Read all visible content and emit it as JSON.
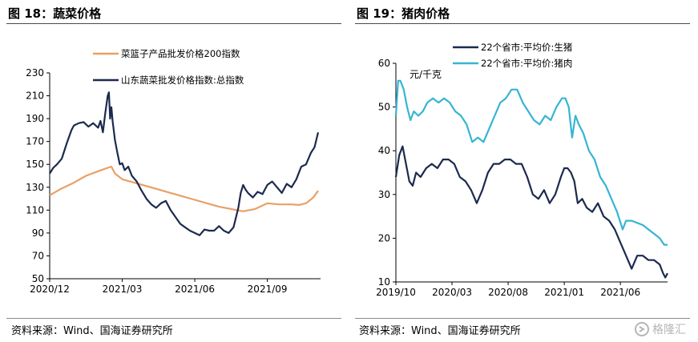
{
  "left_panel": {
    "title": "图 18：蔬菜价格",
    "source": "资料来源：Wind、国海证券研究所"
  },
  "right_panel": {
    "title": "图 19：猪肉价格",
    "source": "资料来源：Wind、国海证券研究所"
  },
  "watermark": {
    "text": "格隆汇",
    "icon": "gelonghui-logo-icon"
  },
  "colors": {
    "navy": "#1b2a4e",
    "orange": "#e8a066",
    "cyan": "#36b5d2"
  },
  "chart_data": [
    {
      "type": "line",
      "title": "图 18：蔬菜价格",
      "x_ticks": [
        "2020/12",
        "2021/03",
        "2021/06",
        "2021/09"
      ],
      "x_tick_pos": [
        0,
        3.0,
        6.0,
        9.0
      ],
      "x_unit": "months since 2020-12-01",
      "xlim": [
        0,
        11.2
      ],
      "y_ticks": [
        50,
        70,
        90,
        110,
        130,
        150,
        170,
        190,
        210,
        230
      ],
      "ylim": [
        50,
        230
      ],
      "legend_position": "top-center",
      "series": [
        {
          "name": "菜篮子产品批发价格200指数",
          "color": "#e8a066",
          "x": [
            0,
            0.5,
            1.0,
            1.5,
            2.0,
            2.4,
            2.55,
            2.7,
            3.0,
            3.5,
            4.0,
            4.5,
            5.0,
            5.5,
            6.0,
            6.5,
            7.0,
            7.5,
            8.0,
            8.5,
            9.0,
            9.5,
            10.0,
            10.3,
            10.6,
            10.9,
            11.1
          ],
          "values": [
            123,
            129,
            134,
            140,
            144,
            147,
            148,
            142,
            137,
            134,
            131,
            128,
            125,
            122,
            119,
            116,
            113,
            111,
            109,
            111,
            116,
            115,
            115,
            114.5,
            116,
            121,
            127
          ]
        },
        {
          "name": "山东蔬菜批发价格指数:总指数",
          "color": "#1b2a4e",
          "x": [
            0,
            0.15,
            0.3,
            0.5,
            0.7,
            0.9,
            1.0,
            1.1,
            1.2,
            1.4,
            1.6,
            1.8,
            2.0,
            2.1,
            2.2,
            2.3,
            2.4,
            2.45,
            2.5,
            2.55,
            2.6,
            2.7,
            2.8,
            2.9,
            3.0,
            3.1,
            3.25,
            3.4,
            3.6,
            3.8,
            4.0,
            4.2,
            4.4,
            4.6,
            4.8,
            5.0,
            5.2,
            5.4,
            5.6,
            5.8,
            6.0,
            6.2,
            6.4,
            6.6,
            6.8,
            7.0,
            7.2,
            7.4,
            7.6,
            7.8,
            7.9,
            8.0,
            8.1,
            8.2,
            8.4,
            8.6,
            8.8,
            9.0,
            9.2,
            9.4,
            9.6,
            9.8,
            10.0,
            10.2,
            10.4,
            10.6,
            10.8,
            10.95,
            11.1
          ],
          "values": [
            142,
            147,
            150,
            155,
            168,
            180,
            184,
            185,
            186,
            187,
            183,
            186,
            182,
            188,
            178,
            195,
            210,
            213,
            190,
            200,
            188,
            171,
            160,
            150,
            151,
            145,
            148,
            140,
            135,
            127,
            120,
            115,
            112,
            116,
            118,
            110,
            104,
            98,
            95,
            92,
            90,
            88,
            93,
            92,
            92,
            96,
            92,
            90,
            95,
            112,
            125,
            132,
            128,
            125,
            121,
            126,
            124,
            132,
            135,
            130,
            125,
            133,
            130,
            137,
            148,
            150,
            160,
            165,
            178
          ]
        }
      ]
    },
    {
      "type": "line",
      "title": "图 19：猪肉价格",
      "x_ticks": [
        "2019/10",
        "2020/03",
        "2020/08",
        "2021/01",
        "2021/06"
      ],
      "x_tick_pos": [
        0,
        5.0,
        10.0,
        15.0,
        20.0
      ],
      "x_unit": "months since 2019-10-01",
      "xlim": [
        0,
        24.2
      ],
      "y_ticks": [
        10,
        20,
        30,
        40,
        50,
        60
      ],
      "ylim": [
        10,
        60
      ],
      "yunit": "元/千克",
      "legend_position": "top-center",
      "series": [
        {
          "name": "22个省市:平均价:生猪",
          "color": "#1b2a4e",
          "x": [
            0,
            0.3,
            0.6,
            0.9,
            1.2,
            1.5,
            1.8,
            2.2,
            2.7,
            3.2,
            3.7,
            4.2,
            4.7,
            5.2,
            5.7,
            6.2,
            6.7,
            7.2,
            7.7,
            8.2,
            8.7,
            9.2,
            9.7,
            10.2,
            10.7,
            11.2,
            11.7,
            12.2,
            12.7,
            13.2,
            13.7,
            14.2,
            14.7,
            15.0,
            15.3,
            15.6,
            15.9,
            16.2,
            16.6,
            17.0,
            17.5,
            18.0,
            18.5,
            19.0,
            19.5,
            20.0,
            20.5,
            21.0,
            21.5,
            22.0,
            22.5,
            23.0,
            23.5,
            23.8,
            24.0,
            24.2
          ],
          "values": [
            34,
            39,
            41,
            37,
            33,
            32,
            35,
            34,
            36,
            37,
            36,
            38,
            38,
            37,
            34,
            33,
            31,
            28,
            31,
            35,
            37,
            37,
            38,
            38,
            37,
            37,
            34,
            30,
            29,
            31,
            28,
            30,
            34,
            36,
            36,
            35,
            33,
            28,
            29,
            27,
            26,
            28,
            25,
            24,
            22,
            19,
            16,
            13,
            16,
            16,
            15,
            15,
            14,
            12,
            11,
            12
          ]
        },
        {
          "name": "22个省市:平均价:猪肉",
          "color": "#36b5d2",
          "x": [
            0,
            0.2,
            0.4,
            0.7,
            1.0,
            1.3,
            1.6,
            2.0,
            2.4,
            2.8,
            3.3,
            3.8,
            4.3,
            4.8,
            5.3,
            5.8,
            6.3,
            6.8,
            7.3,
            7.8,
            8.3,
            8.8,
            9.3,
            9.8,
            10.3,
            10.8,
            11.3,
            11.8,
            12.3,
            12.8,
            13.3,
            13.8,
            14.3,
            14.8,
            15.1,
            15.4,
            15.7,
            16.0,
            16.3,
            16.7,
            17.2,
            17.7,
            18.2,
            18.7,
            19.2,
            19.7,
            20.2,
            20.5,
            21.0,
            21.5,
            22.0,
            22.5,
            23.0,
            23.5,
            23.9,
            24.2
          ],
          "values": [
            48,
            56,
            56,
            54,
            50,
            47,
            49,
            48,
            49,
            51,
            52,
            51,
            52,
            51,
            49,
            48,
            46,
            42,
            43,
            42,
            45,
            48,
            51,
            52,
            54,
            54,
            51,
            49,
            47,
            46,
            48,
            47,
            50,
            52,
            52,
            50,
            43,
            48,
            46,
            44,
            40,
            38,
            34,
            32,
            29,
            26,
            22,
            24,
            24,
            23.5,
            23,
            22,
            21,
            20,
            18.5,
            18.5
          ]
        }
      ]
    }
  ]
}
